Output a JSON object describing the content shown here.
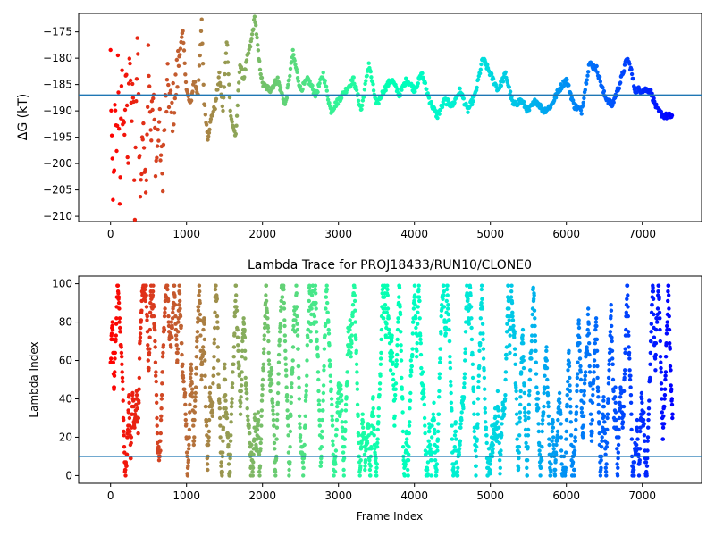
{
  "chart_data": [
    {
      "type": "scatter",
      "title": "",
      "xlabel": "",
      "ylabel": "ΔG (kT)",
      "xlim": [
        -420,
        7780
      ],
      "ylim": [
        -211,
        -171.5
      ],
      "xticks": [
        0,
        1000,
        2000,
        3000,
        4000,
        5000,
        6000,
        7000
      ],
      "yticks": [
        -175,
        -180,
        -185,
        -190,
        -195,
        -200,
        -205,
        -210
      ],
      "hline": {
        "y": -187,
        "color": "#1f77b4"
      },
      "colormap": "rainbow (reversed): red at frame 0, purple at last frame",
      "n_frames": 7400,
      "keypoints": [
        [
          0,
          -180
        ],
        [
          30,
          -210
        ],
        [
          60,
          -190
        ],
        [
          80,
          -200
        ],
        [
          100,
          -178
        ],
        [
          120,
          -205
        ],
        [
          150,
          -185
        ],
        [
          180,
          -196
        ],
        [
          200,
          -182
        ],
        [
          230,
          -202
        ],
        [
          250,
          -174
        ],
        [
          280,
          -192
        ],
        [
          300,
          -186
        ],
        [
          320,
          -210
        ],
        [
          350,
          -175
        ],
        [
          380,
          -198
        ],
        [
          400,
          -205
        ],
        [
          430,
          -190
        ],
        [
          460,
          -208
        ],
        [
          500,
          -176
        ],
        [
          530,
          -194
        ],
        [
          560,
          -188
        ],
        [
          600,
          -200
        ],
        [
          640,
          -192
        ],
        [
          680,
          -203
        ],
        [
          720,
          -190
        ],
        [
          760,
          -185
        ],
        [
          800,
          -191
        ],
        [
          850,
          -187
        ],
        [
          900,
          -180
        ],
        [
          950,
          -175
        ],
        [
          1000,
          -186
        ],
        [
          1050,
          -189
        ],
        [
          1100,
          -184
        ],
        [
          1150,
          -187
        ],
        [
          1200,
          -173
        ],
        [
          1230,
          -188
        ],
        [
          1280,
          -195
        ],
        [
          1330,
          -191
        ],
        [
          1380,
          -189
        ],
        [
          1430,
          -183
        ],
        [
          1480,
          -190
        ],
        [
          1530,
          -176
        ],
        [
          1580,
          -191
        ],
        [
          1650,
          -195
        ],
        [
          1700,
          -181
        ],
        [
          1750,
          -184
        ],
        [
          1800,
          -180
        ],
        [
          1850,
          -177
        ],
        [
          1900,
          -172
        ],
        [
          1950,
          -180
        ],
        [
          2000,
          -185
        ],
        [
          2100,
          -186
        ],
        [
          2200,
          -184
        ],
        [
          2300,
          -189
        ],
        [
          2400,
          -179
        ],
        [
          2500,
          -186
        ],
        [
          2600,
          -184
        ],
        [
          2700,
          -187
        ],
        [
          2800,
          -183
        ],
        [
          2900,
          -190
        ],
        [
          3000,
          -188
        ],
        [
          3100,
          -186
        ],
        [
          3200,
          -184
        ],
        [
          3300,
          -190
        ],
        [
          3400,
          -181
        ],
        [
          3500,
          -189
        ],
        [
          3600,
          -186
        ],
        [
          3700,
          -184
        ],
        [
          3800,
          -187
        ],
        [
          3900,
          -184
        ],
        [
          4000,
          -186
        ],
        [
          4100,
          -183
        ],
        [
          4200,
          -188
        ],
        [
          4300,
          -191
        ],
        [
          4400,
          -188
        ],
        [
          4500,
          -189
        ],
        [
          4600,
          -186
        ],
        [
          4700,
          -190
        ],
        [
          4800,
          -187
        ],
        [
          4900,
          -180
        ],
        [
          5000,
          -183
        ],
        [
          5100,
          -186
        ],
        [
          5200,
          -183
        ],
        [
          5300,
          -189
        ],
        [
          5400,
          -188
        ],
        [
          5500,
          -190
        ],
        [
          5600,
          -188
        ],
        [
          5700,
          -190
        ],
        [
          5800,
          -189
        ],
        [
          5900,
          -186
        ],
        [
          6000,
          -184
        ],
        [
          6100,
          -189
        ],
        [
          6200,
          -190
        ],
        [
          6300,
          -181
        ],
        [
          6400,
          -182
        ],
        [
          6500,
          -187
        ],
        [
          6600,
          -189
        ],
        [
          6700,
          -185
        ],
        [
          6800,
          -180
        ],
        [
          6850,
          -182
        ],
        [
          6900,
          -186
        ],
        [
          7000,
          -186
        ],
        [
          7100,
          -186
        ],
        [
          7200,
          -190
        ],
        [
          7300,
          -191
        ],
        [
          7380,
          -191
        ]
      ]
    },
    {
      "type": "scatter",
      "title": "Lambda Trace for PROJ18433/RUN10/CLONE0",
      "xlabel": "Frame Index",
      "ylabel": "Lambda Index",
      "xlim": [
        -420,
        7780
      ],
      "ylim": [
        -4,
        104
      ],
      "xticks": [
        0,
        1000,
        2000,
        3000,
        4000,
        5000,
        6000,
        7000
      ],
      "yticks": [
        0,
        20,
        40,
        60,
        80,
        100
      ],
      "hline": {
        "y": 10,
        "color": "#1f77b4"
      },
      "colormap": "rainbow (reversed): red at frame 0, purple at last frame",
      "n_frames": 7400,
      "lambda_range": [
        0,
        99
      ]
    }
  ]
}
